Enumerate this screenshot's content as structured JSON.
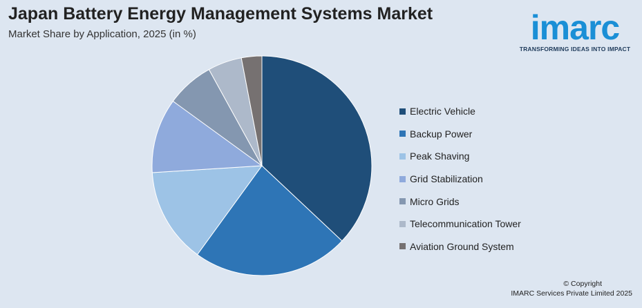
{
  "chart_data": {
    "type": "pie",
    "title": "Japan Battery Energy Management Systems Market",
    "subtitle": "Market Share by Application, 2025 (in %)",
    "categories": [
      "Electric Vehicle",
      "Backup Power",
      "Peak Shaving",
      "Grid Stabilization",
      "Micro Grids",
      "Telecommunication Tower",
      "Aviation Ground System"
    ],
    "values": [
      37,
      23,
      14,
      11,
      7,
      5,
      3
    ],
    "colors": [
      "#1f4e79",
      "#2e75b6",
      "#9dc3e6",
      "#8faadc",
      "#8497b0",
      "#adb9ca",
      "#767171"
    ],
    "legend_position": "right"
  },
  "logo": {
    "word": "imarc",
    "tagline": "TRANSFORMING IDEAS INTO IMPACT"
  },
  "footer": {
    "copyright": "© Copyright",
    "company": "IMARC Services Private Limited 2025"
  }
}
